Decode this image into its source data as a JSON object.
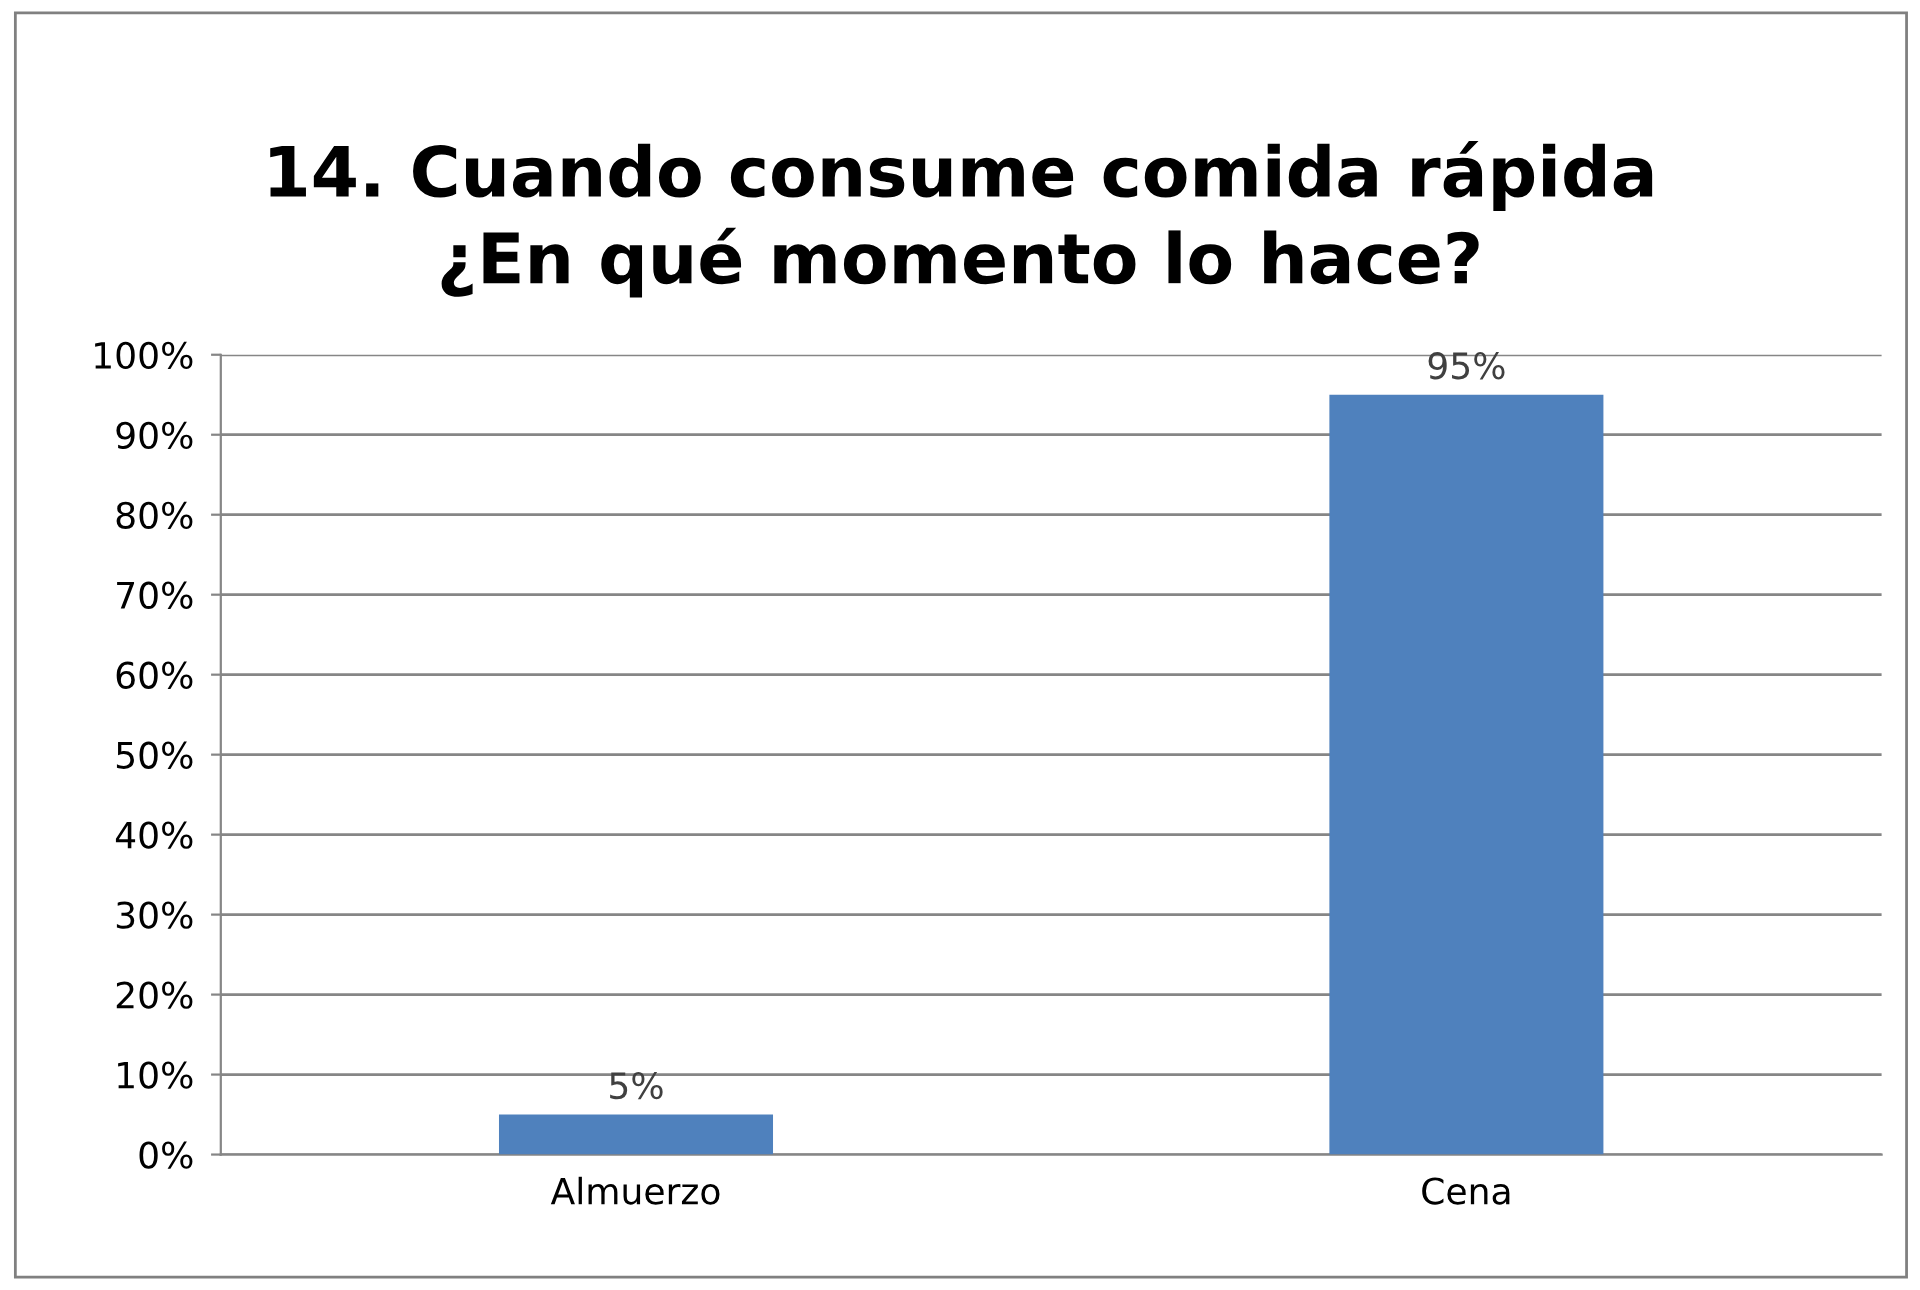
{
  "chart_data": {
    "type": "bar",
    "title": "14. Cuando consume comida rápida\n¿En qué momento lo hace?",
    "categories": [
      "Almuerzo",
      "Cena"
    ],
    "values": [
      5,
      95
    ],
    "value_labels": [
      "5%",
      "95%"
    ],
    "color": "#4f81bd",
    "ylim": [
      0,
      100
    ],
    "yticks": [
      {
        "value": 0,
        "label": "0%"
      },
      {
        "value": 10,
        "label": "10%"
      },
      {
        "value": 20,
        "label": "20%"
      },
      {
        "value": 30,
        "label": "30%"
      },
      {
        "value": 40,
        "label": "40%"
      },
      {
        "value": 50,
        "label": "50%"
      },
      {
        "value": 60,
        "label": "60%"
      },
      {
        "value": 70,
        "label": "70%"
      },
      {
        "value": 80,
        "label": "80%"
      },
      {
        "value": 90,
        "label": "90%"
      },
      {
        "value": 100,
        "label": "100%"
      }
    ],
    "grid": "y",
    "legend": false
  }
}
